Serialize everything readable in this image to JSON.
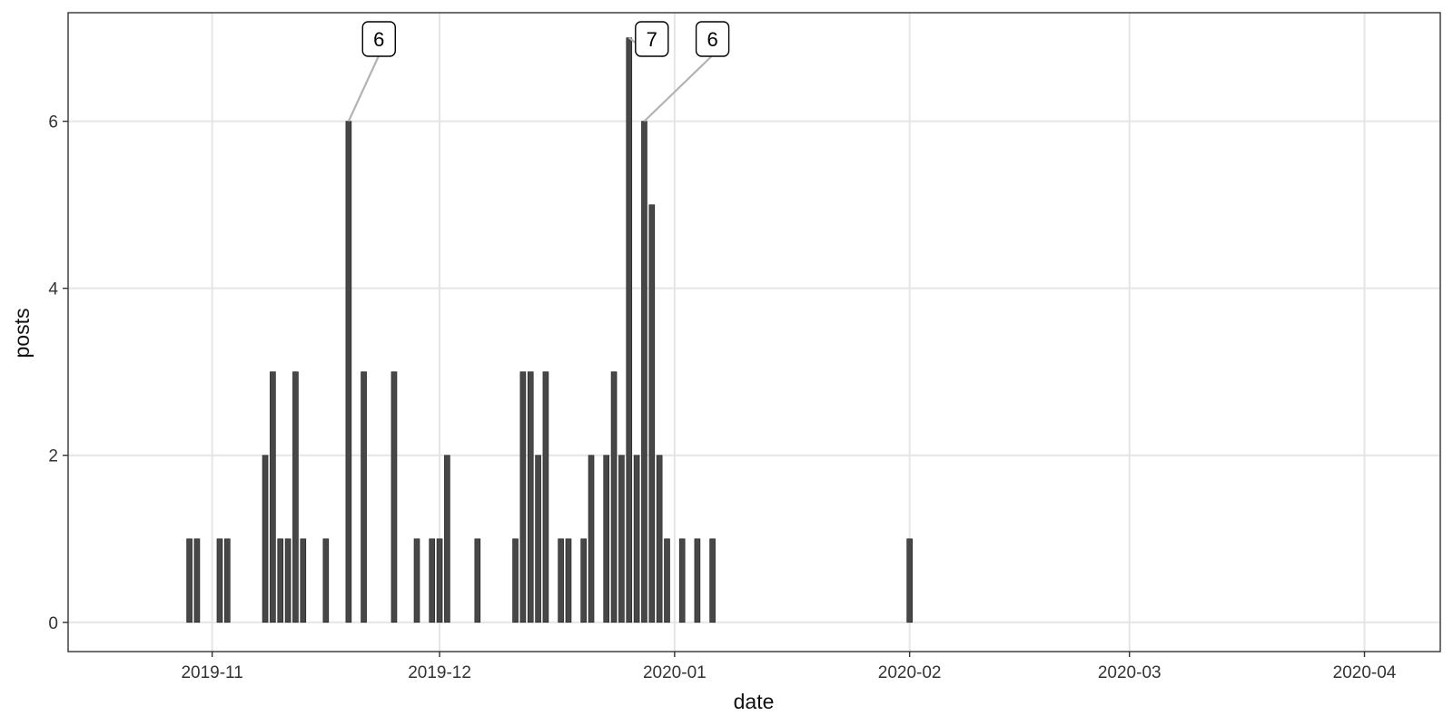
{
  "chart_data": {
    "type": "bar",
    "xlabel": "date",
    "ylabel": "posts",
    "xlim": [
      "2019-10-13",
      "2020-04-11"
    ],
    "ylim": [
      -0.35,
      7.3
    ],
    "x_ticks": [
      "2019-11",
      "2019-12",
      "2020-01",
      "2020-02",
      "2020-03",
      "2020-04"
    ],
    "y_ticks": [
      0,
      2,
      4,
      6
    ],
    "grid": true,
    "colors": {
      "bar": "#474747",
      "grid": "#e5e5e5",
      "panel_border": "#333333",
      "callout_line": "#b3b3b3"
    },
    "series": [
      {
        "x": [
          "2019-10-29",
          "2019-10-30",
          "2019-11-02",
          "2019-11-03",
          "2019-11-08",
          "2019-11-09",
          "2019-11-10",
          "2019-11-11",
          "2019-11-12",
          "2019-11-13",
          "2019-11-16",
          "2019-11-19",
          "2019-11-21",
          "2019-11-25",
          "2019-11-28",
          "2019-11-30",
          "2019-12-01",
          "2019-12-02",
          "2019-12-06",
          "2019-12-11",
          "2019-12-12",
          "2019-12-13",
          "2019-12-14",
          "2019-12-15",
          "2019-12-17",
          "2019-12-18",
          "2019-12-20",
          "2019-12-21",
          "2019-12-23",
          "2019-12-24",
          "2019-12-25",
          "2019-12-26",
          "2019-12-27",
          "2019-12-28",
          "2019-12-29",
          "2019-12-30",
          "2019-12-31",
          "2020-01-02",
          "2020-01-04",
          "2020-01-06",
          "2020-02-01"
        ],
        "values": [
          1,
          1,
          1,
          1,
          2,
          3,
          1,
          1,
          3,
          1,
          1,
          6,
          3,
          3,
          1,
          1,
          1,
          2,
          1,
          1,
          3,
          3,
          2,
          3,
          1,
          1,
          1,
          2,
          2,
          3,
          2,
          7,
          2,
          6,
          5,
          2,
          1,
          1,
          1,
          1,
          1
        ]
      }
    ],
    "annotations": [
      {
        "x": "2019-11-19",
        "y": 6,
        "text": "6",
        "label_x": "2019-11-23"
      },
      {
        "x": "2019-12-26",
        "y": 7,
        "text": "7",
        "label_x": "2019-12-29"
      },
      {
        "x": "2019-12-28",
        "y": 6,
        "text": "6",
        "label_x": "2020-01-06"
      }
    ]
  }
}
